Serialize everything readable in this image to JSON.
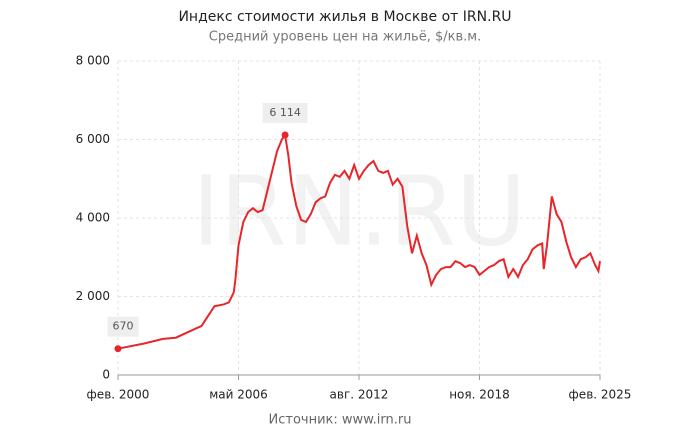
{
  "chart_data": {
    "type": "line",
    "title": "Индекс стоимости жилья в Москве от IRN.RU",
    "subtitle": "Средний уровень цен на жильё, $/кв.м.",
    "watermark": "IRN.RU",
    "source": "Источник: www.irn.ru",
    "grid": true,
    "xlim": [
      "2000-02",
      "2025-02"
    ],
    "xticks": [
      {
        "value": "2000-02",
        "label": "фев. 2000"
      },
      {
        "value": "2006-05",
        "label": "май 2006"
      },
      {
        "value": "2012-08",
        "label": "авг. 2012"
      },
      {
        "value": "2018-11",
        "label": "ноя. 2018"
      },
      {
        "value": "2025-02",
        "label": "фев. 2025"
      }
    ],
    "ylim": [
      0,
      8000
    ],
    "yticks": [
      0,
      {
        "value": 2000,
        "label": "2 000"
      },
      {
        "value": 4000,
        "label": "4 000"
      },
      {
        "value": 6000,
        "label": "6 000"
      },
      {
        "value": 8000,
        "label": "8 000"
      }
    ],
    "x": [
      "2000-02",
      "2001-06",
      "2002-06",
      "2003-02",
      "2003-10",
      "2004-06",
      "2005-02",
      "2005-08",
      "2005-11",
      "2006-02",
      "2006-03",
      "2006-05",
      "2006-08",
      "2006-11",
      "2007-02",
      "2007-05",
      "2007-08",
      "2007-11",
      "2008-02",
      "2008-05",
      "2008-08",
      "2008-10",
      "2008-12",
      "2009-02",
      "2009-05",
      "2009-08",
      "2009-11",
      "2010-02",
      "2010-05",
      "2010-08",
      "2010-11",
      "2011-02",
      "2011-05",
      "2011-08",
      "2011-11",
      "2012-02",
      "2012-05",
      "2012-08",
      "2012-11",
      "2013-02",
      "2013-05",
      "2013-08",
      "2013-11",
      "2014-02",
      "2014-05",
      "2014-08",
      "2014-11",
      "2015-02",
      "2015-05",
      "2015-08",
      "2015-11",
      "2016-02",
      "2016-05",
      "2016-08",
      "2016-11",
      "2017-02",
      "2017-05",
      "2017-08",
      "2017-11",
      "2018-02",
      "2018-05",
      "2018-08",
      "2018-11",
      "2019-02",
      "2019-05",
      "2019-08",
      "2019-11",
      "2020-02",
      "2020-05",
      "2020-08",
      "2020-11",
      "2021-02",
      "2021-05",
      "2021-08",
      "2021-11",
      "2022-02",
      "2022-03",
      "2022-05",
      "2022-08",
      "2022-11",
      "2023-02",
      "2023-05",
      "2023-08",
      "2023-11",
      "2024-02",
      "2024-05",
      "2024-08",
      "2024-11",
      "2025-01",
      "2025-02"
    ],
    "series": [
      {
        "name": "Индекс стоимости жилья",
        "color": "#e8262a",
        "values": [
          670,
          800,
          920,
          950,
          1100,
          1250,
          1750,
          1800,
          1850,
          2100,
          2400,
          3300,
          3900,
          4150,
          4250,
          4150,
          4200,
          4700,
          5200,
          5700,
          6000,
          6114,
          5600,
          4900,
          4300,
          3950,
          3900,
          4100,
          4400,
          4500,
          4550,
          4900,
          5100,
          5050,
          5200,
          5000,
          5350,
          5000,
          5200,
          5350,
          5450,
          5200,
          5150,
          5200,
          4850,
          5000,
          4800,
          3800,
          3100,
          3550,
          3100,
          2800,
          2300,
          2550,
          2700,
          2750,
          2750,
          2900,
          2850,
          2750,
          2800,
          2750,
          2550,
          2650,
          2750,
          2800,
          2900,
          2950,
          2500,
          2700,
          2500,
          2800,
          2950,
          3200,
          3300,
          3350,
          2700,
          3300,
          4550,
          4100,
          3900,
          3400,
          3000,
          2750,
          2950,
          3000,
          3100,
          2800,
          2650,
          2900
        ],
        "value_labels": [
          "670",
          null,
          null,
          null,
          null,
          null,
          null,
          null,
          null,
          null,
          null,
          null,
          null,
          null,
          null,
          null,
          null,
          null,
          null,
          null,
          null,
          "6 114",
          null,
          null,
          null,
          null,
          null,
          null,
          null,
          null,
          null,
          null,
          null,
          null,
          null,
          null,
          null,
          null,
          null,
          null,
          null,
          null,
          null,
          null,
          null,
          null,
          null,
          null,
          null,
          null,
          null,
          null,
          null,
          null,
          null,
          null,
          null,
          null,
          null,
          null,
          null,
          null,
          null,
          null,
          null,
          null,
          null,
          null,
          null,
          null,
          null,
          null,
          null,
          null,
          null,
          null,
          null,
          null,
          null,
          null,
          null,
          null,
          null,
          null,
          null,
          null,
          null,
          null,
          null,
          null
        ]
      }
    ]
  }
}
